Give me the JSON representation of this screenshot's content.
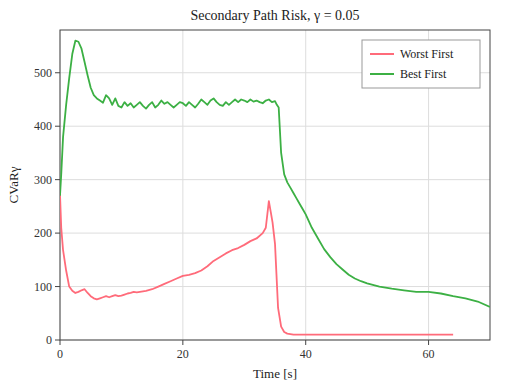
{
  "chart_data": {
    "type": "line",
    "title": "Secondary Path Risk, γ = 0.05",
    "xlabel": "Time [s]",
    "ylabel": "CVaRγ",
    "xlim": [
      0,
      70
    ],
    "ylim": [
      0,
      580
    ],
    "xticks": [
      0,
      20,
      40,
      60
    ],
    "yticks": [
      0,
      100,
      200,
      300,
      400,
      500
    ],
    "grid": true,
    "legend": "upper right",
    "series": [
      {
        "name": "Worst First",
        "color": "#FF6B7A",
        "x": [
          0,
          0.2,
          0.5,
          1.0,
          1.5,
          2.0,
          2.5,
          3.0,
          3.5,
          4.0,
          4.5,
          5.0,
          5.5,
          6.0,
          6.5,
          7.0,
          7.5,
          8.0,
          8.5,
          9.0,
          9.5,
          10.0,
          10.5,
          11.0,
          11.5,
          12.0,
          12.5,
          13.0,
          14.0,
          15.0,
          16.0,
          17.0,
          18.0,
          19.0,
          20.0,
          21.0,
          22.0,
          23.0,
          24.0,
          25.0,
          26.0,
          27.0,
          28.0,
          29.0,
          30.0,
          31.0,
          32.0,
          33.0,
          33.5,
          34.0,
          34.3,
          34.6,
          35.0,
          35.5,
          36.0,
          36.5,
          37.0,
          38.0,
          39.0,
          40.0,
          42.0,
          44.0,
          46.0,
          48.0,
          50.0,
          52.0,
          54.0,
          56.0,
          58.0,
          60.0,
          62.0,
          64.0
        ],
        "values": [
          272,
          210,
          168,
          130,
          100,
          92,
          88,
          90,
          93,
          95,
          88,
          82,
          78,
          76,
          78,
          80,
          82,
          80,
          82,
          84,
          82,
          83,
          85,
          87,
          88,
          90,
          89,
          90,
          92,
          95,
          100,
          105,
          110,
          115,
          120,
          122,
          125,
          130,
          138,
          148,
          155,
          162,
          168,
          172,
          178,
          185,
          190,
          200,
          210,
          260,
          240,
          220,
          180,
          60,
          25,
          15,
          12,
          10,
          10,
          10,
          10,
          10,
          10,
          10,
          10,
          10,
          10,
          10,
          10,
          10,
          10,
          10
        ]
      },
      {
        "name": "Best First",
        "color": "#3CB044",
        "x": [
          0,
          0.2,
          0.5,
          1.0,
          1.5,
          2.0,
          2.5,
          3.0,
          3.5,
          4.0,
          4.5,
          5.0,
          5.5,
          6.0,
          6.5,
          7.0,
          7.5,
          8.0,
          8.5,
          9.0,
          9.5,
          10.0,
          10.5,
          11.0,
          11.5,
          12.0,
          12.5,
          13.0,
          13.5,
          14.0,
          14.5,
          15.0,
          15.5,
          16.0,
          16.5,
          17.0,
          17.5,
          18.0,
          18.5,
          19.0,
          19.5,
          20.0,
          20.5,
          21.0,
          21.5,
          22.0,
          22.5,
          23.0,
          23.5,
          24.0,
          24.5,
          25.0,
          25.5,
          26.0,
          26.5,
          27.0,
          27.5,
          28.0,
          28.5,
          29.0,
          29.5,
          30.0,
          30.5,
          31.0,
          31.5,
          32.0,
          32.5,
          33.0,
          33.5,
          34.0,
          34.5,
          35.0,
          35.3,
          35.6,
          36.0,
          36.5,
          37.0,
          37.5,
          38.0,
          38.5,
          39.0,
          39.5,
          40.0,
          41.0,
          42.0,
          43.0,
          44.0,
          45.0,
          46.0,
          47.0,
          48.0,
          49.0,
          50.0,
          52.0,
          54.0,
          56.0,
          58.0,
          60.0,
          62.0,
          64.0,
          66.0,
          68.0,
          70.0
        ],
        "values": [
          270,
          310,
          380,
          440,
          490,
          535,
          560,
          558,
          545,
          520,
          495,
          472,
          458,
          452,
          448,
          444,
          458,
          452,
          440,
          452,
          438,
          435,
          445,
          438,
          443,
          435,
          440,
          445,
          438,
          433,
          440,
          445,
          435,
          440,
          448,
          442,
          445,
          440,
          435,
          440,
          445,
          443,
          438,
          445,
          440,
          435,
          442,
          450,
          445,
          440,
          448,
          452,
          445,
          440,
          438,
          445,
          440,
          445,
          450,
          445,
          450,
          448,
          445,
          450,
          446,
          448,
          445,
          443,
          448,
          450,
          445,
          447,
          440,
          435,
          350,
          310,
          295,
          285,
          275,
          265,
          255,
          245,
          235,
          210,
          190,
          170,
          155,
          142,
          132,
          122,
          115,
          110,
          106,
          100,
          96,
          93,
          90,
          90,
          87,
          82,
          78,
          72,
          62
        ]
      }
    ]
  }
}
